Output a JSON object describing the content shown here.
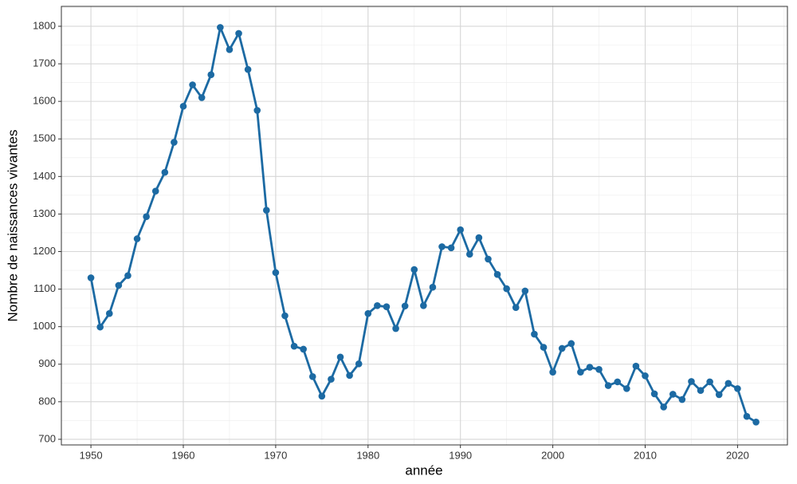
{
  "chart_data": {
    "type": "line",
    "x_label": "année",
    "y_label": "Nombre de naissances vivantes",
    "x": [
      1950,
      1951,
      1952,
      1953,
      1954,
      1955,
      1956,
      1957,
      1958,
      1959,
      1960,
      1961,
      1962,
      1963,
      1964,
      1965,
      1966,
      1967,
      1968,
      1969,
      1970,
      1971,
      1972,
      1973,
      1974,
      1975,
      1976,
      1977,
      1978,
      1979,
      1980,
      1981,
      1982,
      1983,
      1984,
      1985,
      1986,
      1987,
      1988,
      1989,
      1990,
      1991,
      1992,
      1993,
      1994,
      1995,
      1996,
      1997,
      1998,
      1999,
      2000,
      2001,
      2002,
      2003,
      2004,
      2005,
      2006,
      2007,
      2008,
      2009,
      2010,
      2011,
      2012,
      2013,
      2014,
      2015,
      2016,
      2017,
      2018,
      2019,
      2020,
      2021,
      2022
    ],
    "series": [
      {
        "name": "naissances",
        "color": "#1c6aa3",
        "values": [
          1130,
          999,
          1035,
          1110,
          1136,
          1234,
          1293,
          1361,
          1411,
          1491,
          1587,
          1644,
          1610,
          1671,
          1797,
          1738,
          1781,
          1685,
          1576,
          1310,
          1144,
          1029,
          948,
          940,
          867,
          815,
          860,
          919,
          870,
          901,
          1035,
          1056,
          1053,
          995,
          1055,
          1152,
          1056,
          1105,
          1213,
          1210,
          1258,
          1193,
          1237,
          1180,
          1139,
          1101,
          1051,
          1095,
          980,
          945,
          879,
          942,
          955,
          879,
          892,
          886,
          843,
          853,
          835,
          895,
          869,
          821,
          786,
          820,
          806,
          854,
          830,
          853,
          819,
          849,
          835,
          761,
          746
        ]
      }
    ],
    "xlim": [
      1946.8,
      2025.4
    ],
    "xticks": [
      1950,
      1960,
      1970,
      1980,
      1990,
      2000,
      2010,
      2020
    ],
    "ylim": [
      685,
      1853
    ],
    "yticks": [
      700,
      800,
      900,
      1000,
      1100,
      1200,
      1300,
      1400,
      1500,
      1600,
      1700,
      1800
    ],
    "grid": true,
    "minor_grid": true
  }
}
